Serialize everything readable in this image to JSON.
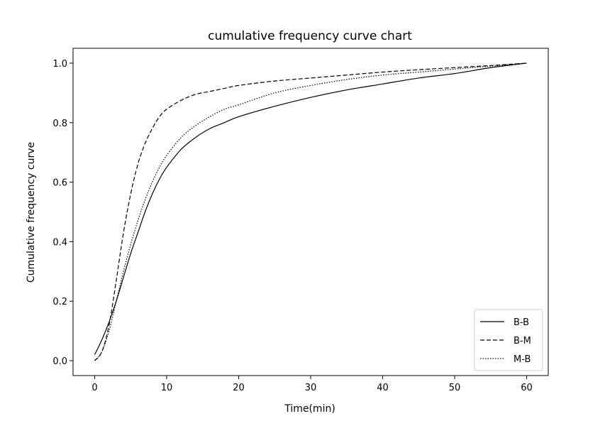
{
  "chart_data": {
    "type": "line",
    "title": "cumulative frequency curve chart",
    "xlabel": "Time(min)",
    "ylabel": "Cumulative frequency curve",
    "xlim": [
      -3,
      63
    ],
    "ylim": [
      -0.05,
      1.05
    ],
    "xticks": [
      0,
      10,
      20,
      30,
      40,
      50,
      60
    ],
    "yticks": [
      0.0,
      0.2,
      0.4,
      0.6,
      0.8,
      1.0
    ],
    "xtick_labels": [
      "0",
      "10",
      "20",
      "30",
      "40",
      "50",
      "60"
    ],
    "ytick_labels": [
      "0.0",
      "0.2",
      "0.4",
      "0.6",
      "0.8",
      "1.0"
    ],
    "grid": false,
    "legend_position": "bottom-right",
    "series": [
      {
        "name": "B-B",
        "style": "solid",
        "color": "#000000",
        "x": [
          0,
          1,
          2,
          3,
          4,
          5,
          6,
          7,
          8,
          9,
          10,
          12,
          14,
          16,
          18,
          20,
          25,
          30,
          35,
          40,
          45,
          50,
          55,
          60
        ],
        "y": [
          0.02,
          0.07,
          0.13,
          0.2,
          0.28,
          0.36,
          0.43,
          0.5,
          0.56,
          0.61,
          0.65,
          0.71,
          0.75,
          0.78,
          0.8,
          0.82,
          0.855,
          0.885,
          0.91,
          0.93,
          0.95,
          0.965,
          0.985,
          1.0
        ]
      },
      {
        "name": "B-M",
        "style": "dashed",
        "color": "#000000",
        "x": [
          0,
          1,
          2,
          3,
          4,
          5,
          6,
          7,
          8,
          9,
          10,
          12,
          14,
          16,
          18,
          20,
          25,
          30,
          35,
          40,
          45,
          50,
          55,
          60
        ],
        "y": [
          0.0,
          0.03,
          0.12,
          0.27,
          0.43,
          0.56,
          0.66,
          0.73,
          0.78,
          0.82,
          0.845,
          0.875,
          0.895,
          0.905,
          0.915,
          0.925,
          0.94,
          0.95,
          0.96,
          0.97,
          0.978,
          0.985,
          0.992,
          1.0
        ]
      },
      {
        "name": "M-B",
        "style": "dotted",
        "color": "#000000",
        "x": [
          0,
          1,
          2,
          3,
          4,
          5,
          6,
          7,
          8,
          9,
          10,
          12,
          14,
          16,
          18,
          20,
          25,
          30,
          35,
          40,
          45,
          50,
          55,
          60
        ],
        "y": [
          0.0,
          0.03,
          0.1,
          0.2,
          0.3,
          0.39,
          0.47,
          0.54,
          0.6,
          0.65,
          0.69,
          0.75,
          0.79,
          0.82,
          0.845,
          0.86,
          0.9,
          0.925,
          0.945,
          0.96,
          0.97,
          0.98,
          0.99,
          1.0
        ]
      }
    ]
  }
}
